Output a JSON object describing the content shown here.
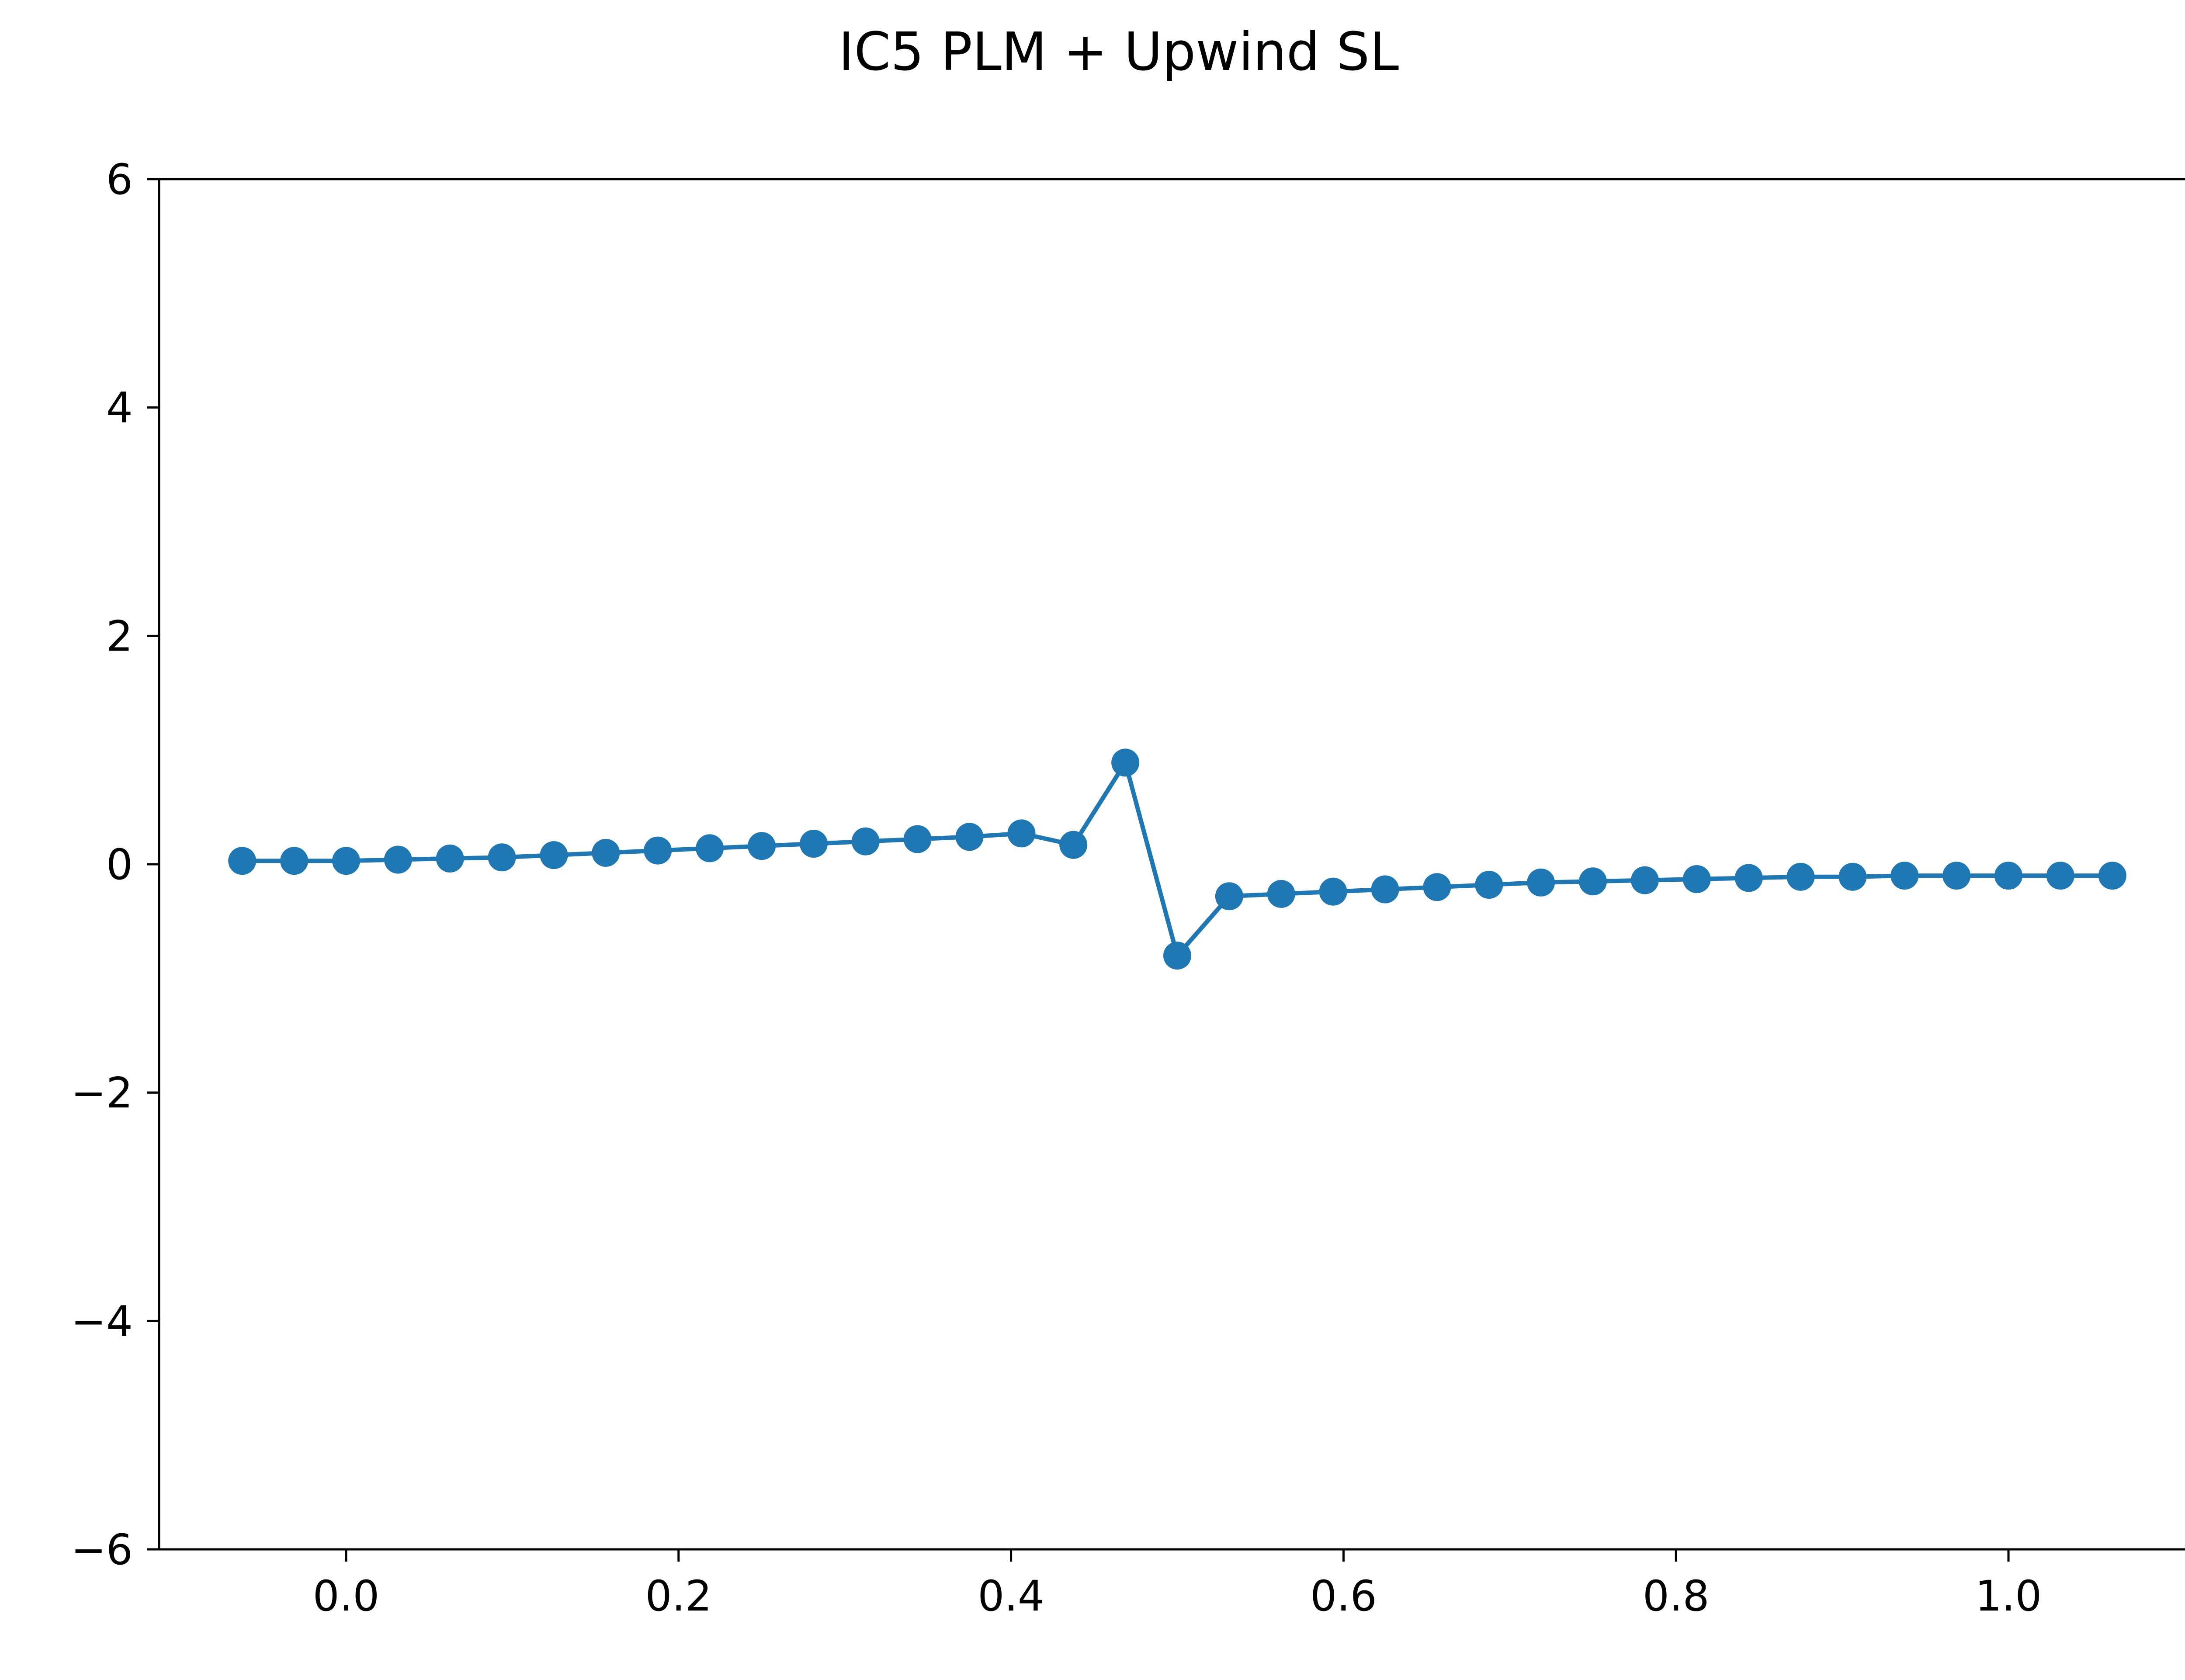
{
  "chart_data": {
    "type": "line",
    "title": "IC5 PLM + Upwind SL",
    "xlabel": "",
    "ylabel": "",
    "xlim": [
      -0.1125,
      1.1125
    ],
    "ylim": [
      -6,
      6
    ],
    "xticks": [
      0.0,
      0.2,
      0.4,
      0.6,
      0.8,
      1.0
    ],
    "xtick_labels": [
      "0.0",
      "0.2",
      "0.4",
      "0.6",
      "0.8",
      "1.0"
    ],
    "yticks": [
      -6,
      -4,
      -2,
      0,
      2,
      4,
      6
    ],
    "ytick_labels": [
      "−6",
      "−4",
      "−2",
      "0",
      "2",
      "4",
      "6"
    ],
    "grid": false,
    "color": "#1f77b4",
    "series": [
      {
        "x": [
          -0.0625,
          -0.03125,
          0.0,
          0.03125,
          0.0625,
          0.09375,
          0.125,
          0.15625,
          0.1875,
          0.21875,
          0.25,
          0.28125,
          0.3125,
          0.34375,
          0.375,
          0.40625,
          0.4375,
          0.46875,
          0.5,
          0.53125,
          0.5625,
          0.59375,
          0.625,
          0.65625,
          0.6875,
          0.71875,
          0.75,
          0.78125,
          0.8125,
          0.84375,
          0.875,
          0.90625,
          0.9375,
          0.96875,
          1.0,
          1.03125,
          1.0625
        ],
        "values": [
          0.03,
          0.03,
          0.03,
          0.04,
          0.05,
          0.06,
          0.08,
          0.1,
          0.12,
          0.14,
          0.16,
          0.18,
          0.2,
          0.22,
          0.24,
          0.27,
          0.17,
          0.89,
          -0.8,
          -0.28,
          -0.26,
          -0.24,
          -0.22,
          -0.2,
          -0.18,
          -0.16,
          -0.15,
          -0.14,
          -0.13,
          -0.12,
          -0.11,
          -0.11,
          -0.1,
          -0.1,
          -0.1,
          -0.1,
          -0.1
        ]
      }
    ]
  }
}
